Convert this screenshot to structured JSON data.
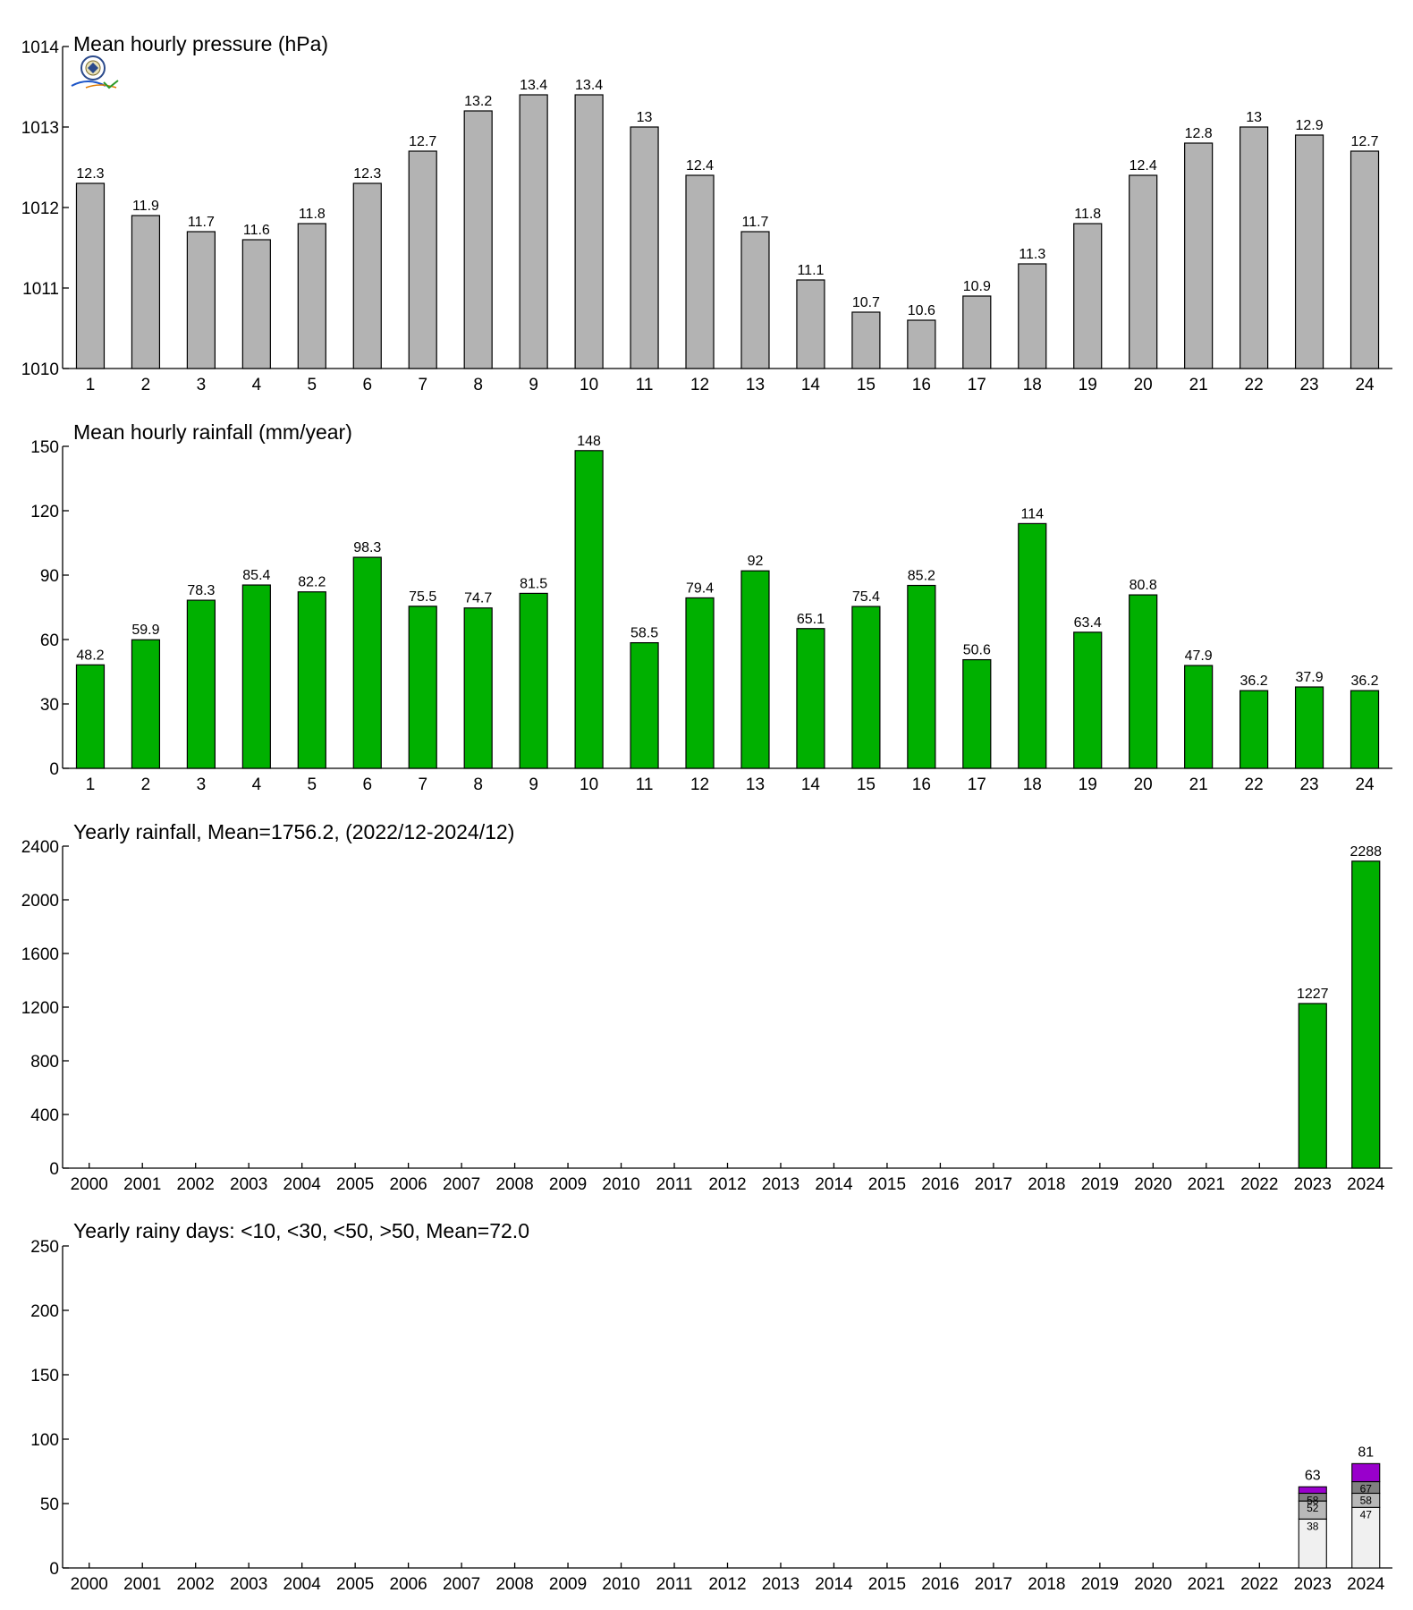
{
  "colors": {
    "pressure_bar": "#b3b3b3",
    "rain_bar": "#00b000",
    "rainy_lt10": "#f0f0f0",
    "rainy_lt30": "#b8b8b8",
    "rainy_lt50": "#808080",
    "rainy_gt50": "#9900cc"
  },
  "logo": {
    "name": "logo-icon"
  },
  "chart_data": [
    {
      "type": "bar",
      "title": "Mean hourly pressure (hPa)",
      "categories": [
        "1",
        "2",
        "3",
        "4",
        "5",
        "6",
        "7",
        "8",
        "9",
        "10",
        "11",
        "12",
        "13",
        "14",
        "15",
        "16",
        "17",
        "18",
        "19",
        "20",
        "21",
        "22",
        "23",
        "24"
      ],
      "values": [
        1012.3,
        1011.9,
        1011.7,
        1011.6,
        1011.8,
        1012.3,
        1012.7,
        1013.2,
        1013.4,
        1013.4,
        1013.0,
        1012.4,
        1011.7,
        1011.1,
        1010.7,
        1010.6,
        1010.9,
        1011.3,
        1011.8,
        1012.4,
        1012.8,
        1013.0,
        1012.9,
        1012.7
      ],
      "labels": [
        "12.3",
        "11.9",
        "11.7",
        "11.6",
        "11.8",
        "12.3",
        "12.7",
        "13.2",
        "13.4",
        "13.4",
        "13",
        "12.4",
        "11.7",
        "11.1",
        "10.7",
        "10.6",
        "10.9",
        "11.3",
        "11.8",
        "12.4",
        "12.8",
        "13",
        "12.9",
        "12.7"
      ],
      "ylim": [
        1010,
        1014
      ],
      "yticks": [
        "1010",
        "1011",
        "1012",
        "1013",
        "1014"
      ],
      "grid": false
    },
    {
      "type": "bar",
      "title": "Mean hourly rainfall (mm/year)",
      "categories": [
        "1",
        "2",
        "3",
        "4",
        "5",
        "6",
        "7",
        "8",
        "9",
        "10",
        "11",
        "12",
        "13",
        "14",
        "15",
        "16",
        "17",
        "18",
        "19",
        "20",
        "21",
        "22",
        "23",
        "24"
      ],
      "values": [
        48.2,
        59.9,
        78.3,
        85.4,
        82.2,
        98.3,
        75.5,
        74.7,
        81.5,
        148,
        58.5,
        79.4,
        92,
        65.1,
        75.4,
        85.2,
        50.6,
        114,
        63.4,
        80.8,
        47.9,
        36.2,
        37.9,
        36.2
      ],
      "labels": [
        "48.2",
        "59.9",
        "78.3",
        "85.4",
        "82.2",
        "98.3",
        "75.5",
        "74.7",
        "81.5",
        "148",
        "58.5",
        "79.4",
        "92",
        "65.1",
        "75.4",
        "85.2",
        "50.6",
        "114",
        "63.4",
        "80.8",
        "47.9",
        "36.2",
        "37.9",
        "36.2"
      ],
      "ylim": [
        0,
        150
      ],
      "yticks": [
        "0",
        "30",
        "60",
        "90",
        "120",
        "150"
      ],
      "grid": false
    },
    {
      "type": "bar",
      "title": "Yearly rainfall, Mean=1756.2, (2022/12-2024/12)",
      "categories": [
        "2000",
        "2001",
        "2002",
        "2003",
        "2004",
        "2005",
        "2006",
        "2007",
        "2008",
        "2009",
        "2010",
        "2011",
        "2012",
        "2013",
        "2014",
        "2015",
        "2016",
        "2017",
        "2018",
        "2019",
        "2020",
        "2021",
        "2022",
        "2023",
        "2024"
      ],
      "values": [
        null,
        null,
        null,
        null,
        null,
        null,
        null,
        null,
        null,
        null,
        null,
        null,
        null,
        null,
        null,
        null,
        null,
        null,
        null,
        null,
        null,
        null,
        null,
        1227,
        2288
      ],
      "labels": [
        "",
        "",
        "",
        "",
        "",
        "",
        "",
        "",
        "",
        "",
        "",
        "",
        "",
        "",
        "",
        "",
        "",
        "",
        "",
        "",
        "",
        "",
        "",
        "1227",
        "2288"
      ],
      "ylim": [
        0,
        2400
      ],
      "yticks": [
        "0",
        "400",
        "800",
        "1200",
        "1600",
        "2000",
        "2400"
      ],
      "grid": false
    },
    {
      "type": "bar",
      "stacked": true,
      "title": "Yearly rainy days: <10, <30, <50, >50, Mean=72.0",
      "categories": [
        "2000",
        "2001",
        "2002",
        "2003",
        "2004",
        "2005",
        "2006",
        "2007",
        "2008",
        "2009",
        "2010",
        "2011",
        "2012",
        "2013",
        "2014",
        "2015",
        "2016",
        "2017",
        "2018",
        "2019",
        "2020",
        "2021",
        "2022",
        "2023",
        "2024"
      ],
      "ylim": [
        0,
        250
      ],
      "yticks": [
        "0",
        "50",
        "100",
        "150",
        "200",
        "250"
      ],
      "grid": false,
      "stacks": [
        {
          "category": "2023",
          "cumulative": [
            38,
            52,
            58,
            63
          ],
          "labels": [
            "38",
            "52",
            "58",
            "63"
          ]
        },
        {
          "category": "2024",
          "cumulative": [
            47,
            58,
            67,
            81
          ],
          "labels": [
            "47",
            "58",
            "67",
            "81"
          ]
        }
      ]
    }
  ]
}
